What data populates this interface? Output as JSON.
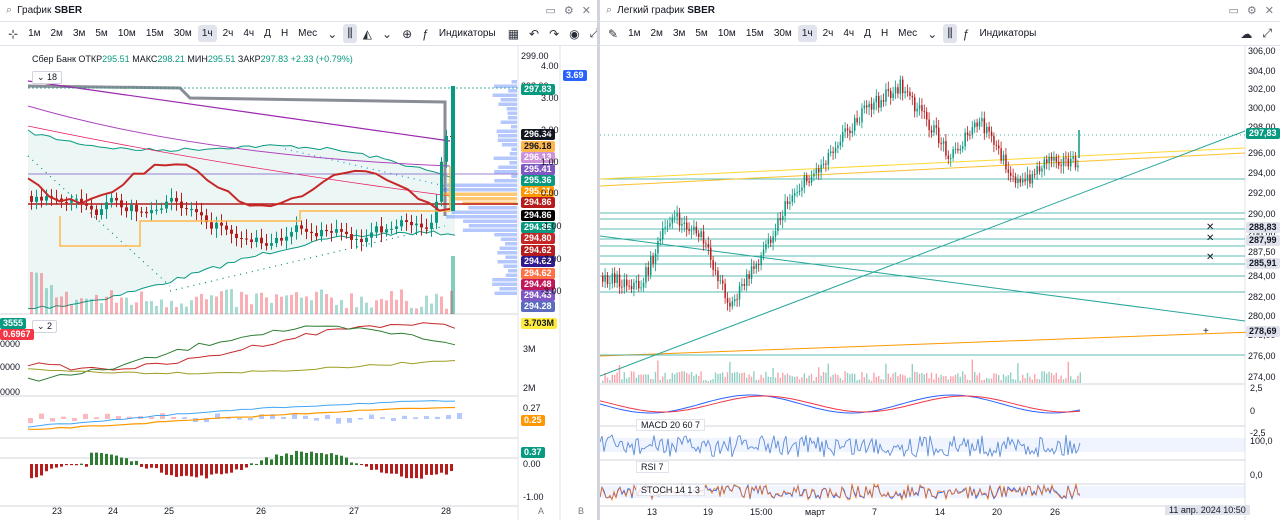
{
  "left": {
    "title_prefix": "График",
    "symbol": "SBER",
    "timeframes": [
      "1м",
      "2м",
      "3м",
      "5м",
      "10м",
      "15м",
      "30м",
      "1ч",
      "2ч",
      "4ч",
      "Д",
      "Н",
      "Мес"
    ],
    "active_tf": "1ч",
    "indicators_label": "Индикаторы",
    "legend": {
      "name": "Сбер Банк",
      "open_label": "ОТКР",
      "open": "295.51",
      "high_label": "МАКС",
      "high": "298.21",
      "low_label": "МИН",
      "low": "295.51",
      "close_label": "ЗАКР",
      "close": "297.83",
      "change": "+2.33 (+0.79%)"
    },
    "counter": "18",
    "sub_counter": "2",
    "price_ticks": [
      "299.00",
      "298.00",
      "297.83",
      "296.34",
      "296.18",
      "296.13",
      "295.41",
      "295.36",
      "295.11",
      "294.86",
      "294.86",
      "294.86",
      "294.80",
      "294.62",
      "294.62",
      "294.62",
      "294.48",
      "294.43",
      "294.28"
    ],
    "vol_axis_ticks": [
      "4.00",
      "3.00",
      "2.00",
      "1.00",
      "0.00",
      "-1.00",
      "-2.00",
      "-3.00"
    ],
    "vol_badge": "3.69",
    "sub1_ticks": [
      "3M",
      "2M"
    ],
    "sub1_badge": "3.703M",
    "sub1_left_ticks": [
      "3555",
      "0000",
      "0000",
      "0000"
    ],
    "sub1_left_badge": "0.6967",
    "sub2_badges": [
      "0.27",
      "0.25"
    ],
    "sub3_badge": "0.37",
    "sub3_ticks": [
      "0.00",
      "-1.00"
    ],
    "x_ticks": [
      "23",
      "24",
      "25",
      "26",
      "27",
      "28"
    ],
    "corner_a": "A",
    "corner_b": "B"
  },
  "right": {
    "title_prefix": "Легкий график",
    "symbol": "SBER",
    "timeframes": [
      "1м",
      "2м",
      "3м",
      "5м",
      "10м",
      "15м",
      "30м",
      "1ч",
      "2ч",
      "4ч",
      "Д",
      "Н",
      "Мес"
    ],
    "active_tf": "1ч",
    "indicators_label": "Индикаторы",
    "price_ticks": [
      "306,00",
      "304,00",
      "302,00",
      "300,00",
      "298,00",
      "296,00",
      "294,00",
      "292,00",
      "290,00",
      "288,00",
      "287,50",
      "286,00",
      "284,00",
      "282,00",
      "280,00",
      "278,00",
      "276,00",
      "274,00"
    ],
    "price_badges": [
      {
        "text": "297,83",
        "color": "#089981"
      },
      {
        "text": "288,83",
        "color": "#e0e3eb"
      },
      {
        "text": "287,99",
        "color": "#e0e3eb"
      },
      {
        "text": "285,91",
        "color": "#e0e3eb"
      },
      {
        "text": "278,69",
        "color": "#e0e3eb"
      }
    ],
    "macd_label": "MACD 20 60 7",
    "macd_ticks": [
      "2,5",
      "0",
      "-2,5"
    ],
    "rsi_label": "RSI 7",
    "rsi_ticks": [
      "100,0",
      "0,0"
    ],
    "stoch_label": "STOCH 14 1 3",
    "x_ticks": [
      "13",
      "19",
      "15:00",
      "март",
      "7",
      "14",
      "20",
      "26"
    ],
    "datetime": "11 апр. 2024 10:50"
  }
}
